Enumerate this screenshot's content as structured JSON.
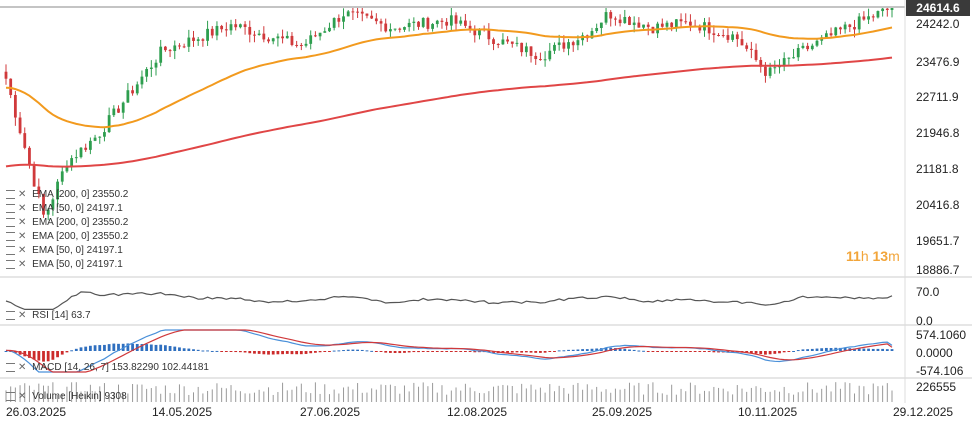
{
  "last_price": "24614.6",
  "price_axis": {
    "ticks": [
      "24242.0",
      "23476.9",
      "22711.9",
      "21946.8",
      "21181.8",
      "20416.8",
      "19651.7",
      "18886.7"
    ]
  },
  "rsi_axis": {
    "ticks": [
      "70.0",
      "0.0"
    ]
  },
  "macd_axis": {
    "ticks": [
      "574.1060",
      "0.0000",
      "-574.106"
    ]
  },
  "volume_axis": {
    "ticks": [
      "226555"
    ]
  },
  "x_axis": {
    "ticks": [
      "26.03.2025",
      "14.05.2025",
      "27.06.2025",
      "12.08.2025",
      "25.09.2025",
      "10.11.2025",
      "29.12.2025"
    ]
  },
  "legend": [
    {
      "label": "EMA [200, 0]",
      "value": "23550.2"
    },
    {
      "label": "EMA [50, 0]",
      "value": "24197.1"
    },
    {
      "label": "EMA [200, 0]",
      "value": "23550.2"
    },
    {
      "label": "EMA [200, 0]",
      "value": "23550.2"
    },
    {
      "label": "EMA [50, 0]",
      "value": "24197.1"
    },
    {
      "label": "EMA [50, 0]",
      "value": "24197.1"
    }
  ],
  "timer": {
    "hours": "11",
    "h": "h",
    "minutes": "13",
    "m": "m"
  },
  "rsi_label": {
    "name": "RSI [14]",
    "value": "63.7"
  },
  "macd_label": {
    "name": "MACD [14, 26, 7]",
    "v1": "153.82290",
    "v2": "102.44181"
  },
  "volume_label": {
    "name": "Volume [Heikin]",
    "value": "9308"
  },
  "colors": {
    "up": "#2e9e4f",
    "down": "#d0393b",
    "ema50": "#f29a1e",
    "ema200": "#e04646",
    "rsi": "#555555",
    "macd_line": "#4a90d9",
    "signal_line": "#d0393b",
    "hist_up": "#2f6fbf",
    "hist_down": "#cc2b2b",
    "volume": "#999999"
  },
  "chart_data": {
    "type": "candlestick",
    "x_range": [
      "26.03.2025",
      "29.12.2025"
    ],
    "price_ylim": [
      18886.7,
      24614.6
    ],
    "close_anchors": [
      {
        "date": "26.03.2025",
        "close": 23100
      },
      {
        "date": "07.04.2025",
        "close": 20100
      },
      {
        "date": "14.04.2025",
        "close": 21300
      },
      {
        "date": "24.04.2025",
        "close": 21900
      },
      {
        "date": "14.05.2025",
        "close": 23700
      },
      {
        "date": "05.06.2025",
        "close": 24250
      },
      {
        "date": "27.06.2025",
        "close": 23800
      },
      {
        "date": "10.07.2025",
        "close": 24500
      },
      {
        "date": "25.07.2025",
        "close": 24200
      },
      {
        "date": "12.08.2025",
        "close": 24350
      },
      {
        "date": "01.09.2025",
        "close": 23800
      },
      {
        "date": "10.09.2025",
        "close": 23600
      },
      {
        "date": "25.09.2025",
        "close": 24100
      },
      {
        "date": "01.10.2025",
        "close": 24500
      },
      {
        "date": "15.10.2025",
        "close": 24200
      },
      {
        "date": "27.10.2025",
        "close": 24300
      },
      {
        "date": "10.11.2025",
        "close": 24000
      },
      {
        "date": "20.11.2025",
        "close": 23200
      },
      {
        "date": "01.12.2025",
        "close": 23700
      },
      {
        "date": "15.12.2025",
        "close": 24200
      },
      {
        "date": "29.12.2025",
        "close": 24614.6
      }
    ],
    "series": [
      {
        "name": "EMA [50, 0]",
        "last": 24197.1
      },
      {
        "name": "EMA [200, 0]",
        "last": 23550.2
      }
    ],
    "rsi": {
      "last": 63.7,
      "ylim": [
        0,
        100
      ],
      "level": 70
    },
    "macd": {
      "macd": 153.8229,
      "signal": 102.44181,
      "ylim": [
        -574.106,
        574.106
      ]
    },
    "volume": {
      "max": 226555
    }
  }
}
